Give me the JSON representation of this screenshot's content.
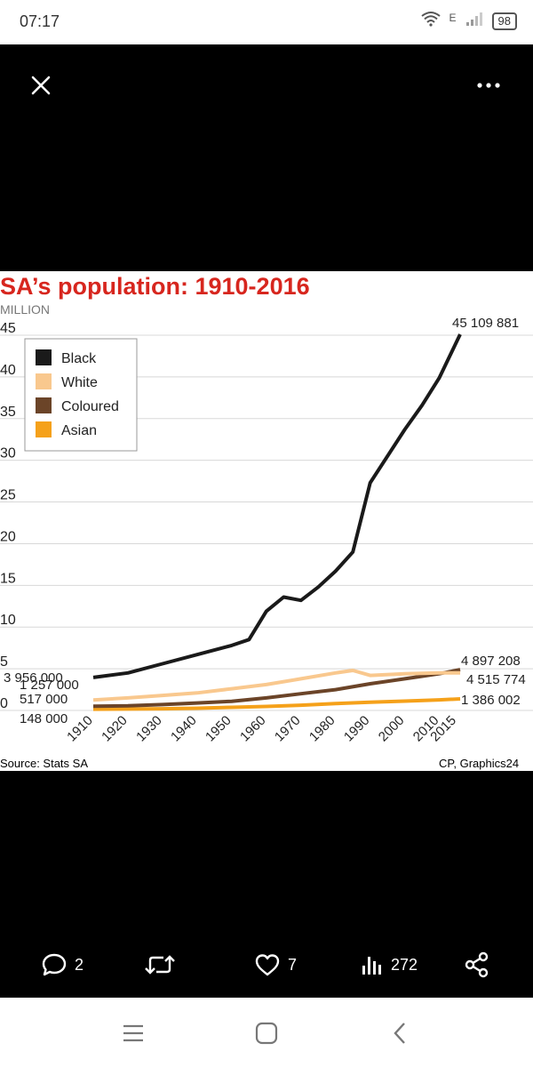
{
  "status_bar": {
    "time": "07:17",
    "network_label": "E",
    "battery": "98",
    "icons": [
      "wifi-icon",
      "signal-icon",
      "battery-icon"
    ]
  },
  "toolbar": {
    "close_icon": "close-icon",
    "more_icon": "more-options-icon"
  },
  "actions": {
    "reply_count": "2",
    "retweet_count": "",
    "like_count": "7",
    "views_count": "272",
    "icons": [
      "reply-icon",
      "retweet-icon",
      "like-icon",
      "views-icon",
      "share-icon"
    ]
  },
  "nav": {
    "icons": [
      "recent-apps-icon",
      "home-icon",
      "back-icon"
    ]
  },
  "colors": {
    "title_red": "#d7261e",
    "black_series": "#1a1a1a",
    "white_series": "#f9c88e",
    "coloured_series": "#6b4428",
    "asian_series": "#f5a11a"
  },
  "chart_data": {
    "type": "line",
    "title": "SA’s population: 1910-2016",
    "ylabel": "MILLION",
    "ylim": [
      0,
      45
    ],
    "yticks": [
      "0",
      "5",
      "10",
      "15",
      "20",
      "25",
      "30",
      "35",
      "40",
      "45"
    ],
    "xlim": [
      1910,
      2016
    ],
    "xticks": [
      "1910",
      "1920",
      "1930",
      "1940",
      "1950",
      "1960",
      "1970",
      "1980",
      "1990",
      "2000",
      "2010",
      "2015"
    ],
    "grid": true,
    "legend_position": "top-left",
    "source": "Source: Stats SA",
    "credit": "CP, Graphics24",
    "start_labels": [
      "3 956 000",
      "1 257 000",
      "517 000",
      "148 000"
    ],
    "end_labels": [
      "45 109 881",
      "4 897 208",
      "4 515 774",
      "1 386 002"
    ],
    "series": [
      {
        "name": "Black",
        "color": "#1a1a1a",
        "x": [
          1910,
          1920,
          1930,
          1940,
          1950,
          1955,
          1960,
          1965,
          1970,
          1975,
          1980,
          1985,
          1990,
          2000,
          2005,
          2010,
          2016
        ],
        "y": [
          3.956,
          4.5,
          5.6,
          6.7,
          7.8,
          8.5,
          11.9,
          13.6,
          13.2,
          14.8,
          16.7,
          19.0,
          27.3,
          33.7,
          36.6,
          39.9,
          45.109881
        ]
      },
      {
        "name": "White",
        "color": "#f9c88e",
        "x": [
          1910,
          1920,
          1930,
          1940,
          1950,
          1960,
          1970,
          1980,
          1985,
          1990,
          2000,
          2010,
          2016
        ],
        "y": [
          1.257,
          1.5,
          1.8,
          2.1,
          2.6,
          3.1,
          3.8,
          4.5,
          4.8,
          4.2,
          4.4,
          4.5,
          4.515774
        ]
      },
      {
        "name": "Coloured",
        "color": "#6b4428",
        "x": [
          1910,
          1920,
          1930,
          1940,
          1950,
          1960,
          1970,
          1980,
          1990,
          2000,
          2010,
          2016
        ],
        "y": [
          0.517,
          0.55,
          0.7,
          0.9,
          1.1,
          1.5,
          2.0,
          2.5,
          3.2,
          3.8,
          4.4,
          4.897208
        ]
      },
      {
        "name": "Asian",
        "color": "#f5a11a",
        "x": [
          1910,
          1920,
          1930,
          1940,
          1950,
          1960,
          1970,
          1980,
          1990,
          2000,
          2010,
          2016
        ],
        "y": [
          0.148,
          0.17,
          0.2,
          0.27,
          0.37,
          0.48,
          0.63,
          0.82,
          0.98,
          1.12,
          1.27,
          1.386002
        ]
      }
    ]
  }
}
